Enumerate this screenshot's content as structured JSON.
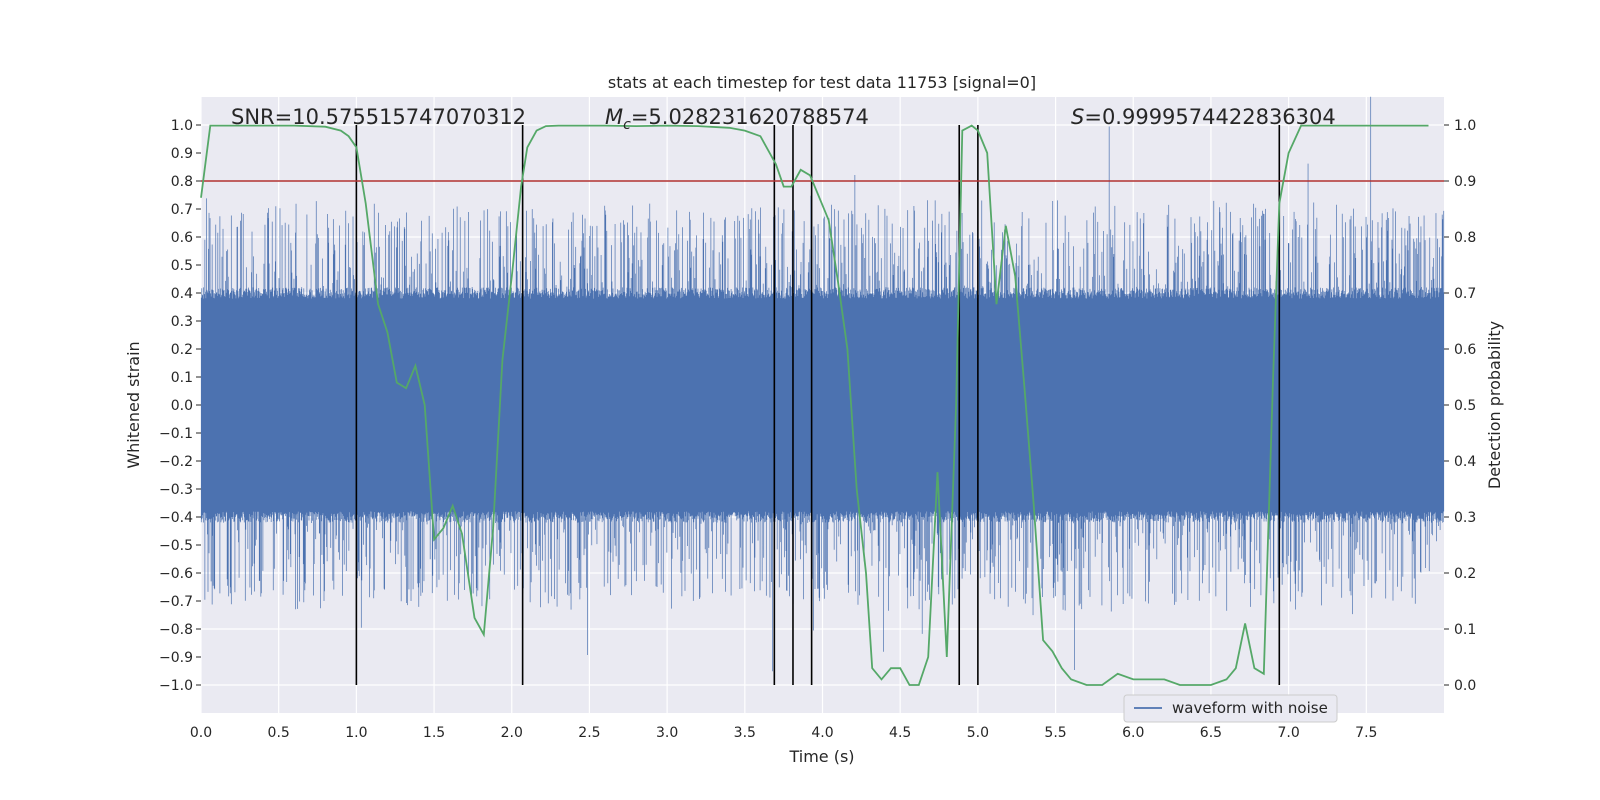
{
  "chart_data": {
    "type": "line",
    "title": "stats at each timestep for test data 11753 [signal=0]",
    "xlabel": "Time (s)",
    "ylabel": "Whitened strain",
    "ylabel_right": "Detection probability",
    "xlim": [
      0.0,
      8.0
    ],
    "ylim": [
      -1.1,
      1.1
    ],
    "ylim_right": [
      -0.05,
      1.05
    ],
    "x_ticks": [
      "0.0",
      "0.5",
      "1.0",
      "1.5",
      "2.0",
      "2.5",
      "3.0",
      "3.5",
      "4.0",
      "4.5",
      "5.0",
      "5.5",
      "6.0",
      "6.5",
      "7.0",
      "7.5"
    ],
    "x_tick_values": [
      0.0,
      0.5,
      1.0,
      1.5,
      2.0,
      2.5,
      3.0,
      3.5,
      4.0,
      4.5,
      5.0,
      5.5,
      6.0,
      6.5,
      7.0,
      7.5
    ],
    "y_ticks": [
      "1.0",
      "0.9",
      "0.8",
      "0.7",
      "0.6",
      "0.5",
      "0.4",
      "0.3",
      "0.2",
      "0.1",
      "0.0",
      "−0.1",
      "−0.2",
      "−0.3",
      "−0.4",
      "−0.5",
      "−0.6",
      "−0.7",
      "−0.8",
      "−0.9",
      "−1.0"
    ],
    "y_tick_values": [
      1.0,
      0.9,
      0.8,
      0.7,
      0.6,
      0.5,
      0.4,
      0.3,
      0.2,
      0.1,
      0.0,
      -0.1,
      -0.2,
      -0.3,
      -0.4,
      -0.5,
      -0.6,
      -0.7,
      -0.8,
      -0.9,
      -1.0
    ],
    "y_ticks_right": [
      "1.0",
      "0.9",
      "0.8",
      "0.7",
      "0.6",
      "0.5",
      "0.4",
      "0.3",
      "0.2",
      "0.1",
      "0.0"
    ],
    "y_tick_values_right": [
      1.0,
      0.9,
      0.8,
      0.7,
      0.6,
      0.5,
      0.4,
      0.3,
      0.2,
      0.1,
      0.0
    ],
    "annotations": {
      "snr": "SNR=10.575515747070312",
      "mc_symbol": "M",
      "mc_sub": "c",
      "mc_value": "=5.028231620788574",
      "s_symbol": "S",
      "s_value": "=0.9999574422836304"
    },
    "legend": {
      "label": "waveform with noise",
      "location": "lower right"
    },
    "threshold": {
      "value": 0.9,
      "axis": "right",
      "color": "#b03030"
    },
    "vertical_lines": [
      1.0,
      2.07,
      3.69,
      3.81,
      3.93,
      4.88,
      5.0,
      6.94
    ],
    "waveform": {
      "name": "waveform with noise",
      "color": "#4c72b0",
      "dense_envelope": 0.38,
      "peak_envelope": 0.55,
      "samples_note": "noise trace, amplitude roughly within ±0.6 with spikes near ±1.0"
    },
    "probability": {
      "name": "detection probability",
      "color": "#55a868",
      "axis": "right",
      "x": [
        0.0,
        0.06,
        0.2,
        0.4,
        0.6,
        0.8,
        0.9,
        0.95,
        1.0,
        1.06,
        1.14,
        1.2,
        1.26,
        1.32,
        1.38,
        1.44,
        1.5,
        1.56,
        1.62,
        1.68,
        1.76,
        1.82,
        1.88,
        1.94,
        2.0,
        2.06,
        2.1,
        2.16,
        2.22,
        2.3,
        2.4,
        2.6,
        2.8,
        3.0,
        3.2,
        3.4,
        3.5,
        3.6,
        3.64,
        3.7,
        3.75,
        3.8,
        3.86,
        3.92,
        3.98,
        4.04,
        4.1,
        4.16,
        4.22,
        4.28,
        4.32,
        4.38,
        4.44,
        4.5,
        4.56,
        4.62,
        4.68,
        4.74,
        4.8,
        4.86,
        4.9,
        4.96,
        5.0,
        5.06,
        5.12,
        5.18,
        5.24,
        5.3,
        5.36,
        5.42,
        5.48,
        5.54,
        5.6,
        5.7,
        5.8,
        5.9,
        6.0,
        6.1,
        6.2,
        6.3,
        6.4,
        6.5,
        6.6,
        6.66,
        6.72,
        6.78,
        6.84,
        6.9,
        6.94,
        7.0,
        7.08,
        7.2,
        7.5,
        7.9
      ],
      "y": [
        0.87,
        0.999,
        0.999,
        0.999,
        0.999,
        0.997,
        0.99,
        0.98,
        0.96,
        0.86,
        0.68,
        0.63,
        0.54,
        0.53,
        0.57,
        0.5,
        0.26,
        0.28,
        0.32,
        0.27,
        0.12,
        0.09,
        0.28,
        0.58,
        0.73,
        0.89,
        0.96,
        0.99,
        0.998,
        0.999,
        0.999,
        0.999,
        0.998,
        0.999,
        0.998,
        0.995,
        0.99,
        0.98,
        0.96,
        0.93,
        0.89,
        0.89,
        0.92,
        0.91,
        0.87,
        0.83,
        0.72,
        0.6,
        0.35,
        0.2,
        0.03,
        0.01,
        0.03,
        0.03,
        0.0,
        0.0,
        0.05,
        0.38,
        0.05,
        0.5,
        0.99,
        0.999,
        0.99,
        0.95,
        0.68,
        0.82,
        0.73,
        0.53,
        0.32,
        0.08,
        0.06,
        0.03,
        0.01,
        0.0,
        0.0,
        0.02,
        0.01,
        0.01,
        0.01,
        0.0,
        0.0,
        0.0,
        0.01,
        0.03,
        0.11,
        0.03,
        0.02,
        0.55,
        0.86,
        0.95,
        0.999,
        0.999,
        0.999,
        0.999
      ]
    }
  }
}
